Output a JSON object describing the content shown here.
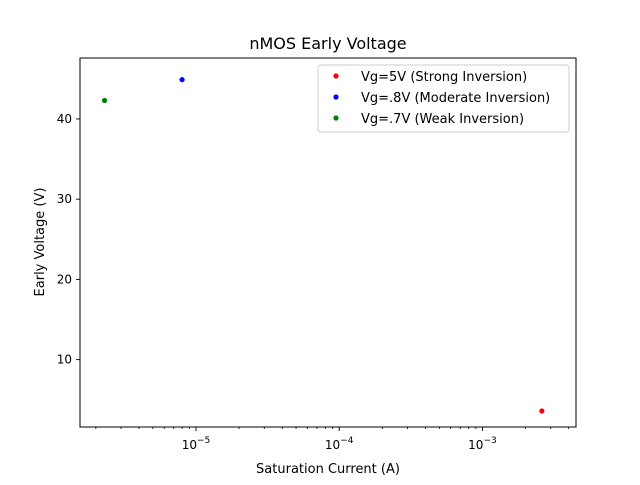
{
  "chart_data": {
    "type": "scatter",
    "title": "nMOS Early Voltage",
    "xlabel": "Saturation Current (A)",
    "ylabel": "Early Voltage (V)",
    "xscale": "log",
    "xlim": [
      1.55e-06,
      0.0045
    ],
    "ylim": [
      1.6,
      47.6
    ],
    "grid": false,
    "legend_position": "top-right",
    "x_ticks": [
      {
        "value": 1e-05,
        "base": "10",
        "exp": "−5"
      },
      {
        "value": 0.0001,
        "base": "10",
        "exp": "−4"
      },
      {
        "value": 0.001,
        "base": "10",
        "exp": "−3"
      }
    ],
    "y_ticks": [
      10,
      20,
      30,
      40
    ],
    "series": [
      {
        "name": "Vg=5V (Strong Inversion)",
        "color": "#ff0000",
        "points": [
          {
            "x": 0.0026,
            "y": 3.6
          }
        ]
      },
      {
        "name": "Vg=.8V (Moderate Inversion)",
        "color": "#0000ff",
        "points": [
          {
            "x": 8e-06,
            "y": 44.9
          }
        ]
      },
      {
        "name": "Vg=.7V (Weak Inversion)",
        "color": "#008000",
        "points": [
          {
            "x": 2.3e-06,
            "y": 42.3
          }
        ]
      }
    ]
  }
}
